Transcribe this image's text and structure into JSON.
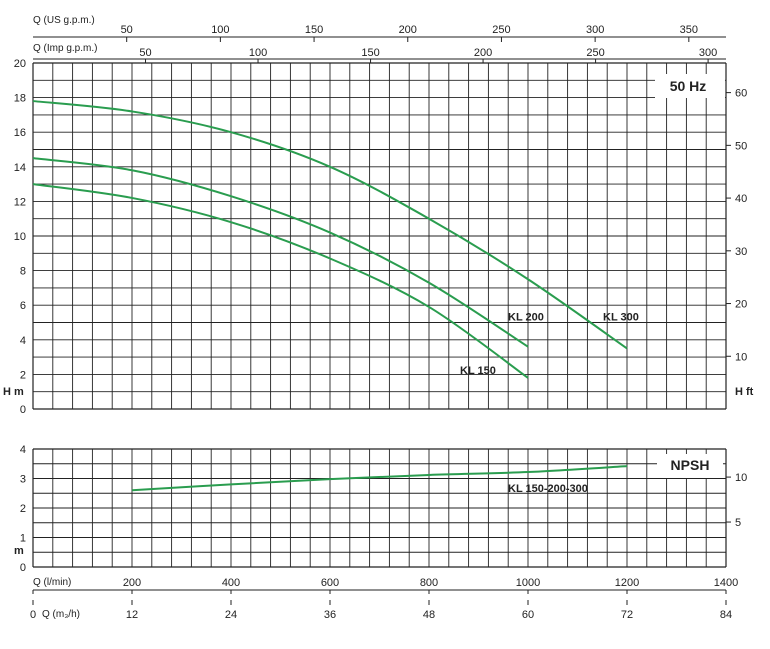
{
  "chart_data": [
    {
      "type": "line",
      "name": "head",
      "badge": "50 Hz",
      "ylabel_left": "H m",
      "ylabel_right": "H ft",
      "ylim": [
        0,
        20
      ],
      "y_ticks": [
        0,
        2,
        4,
        6,
        8,
        10,
        12,
        14,
        16,
        18,
        20
      ],
      "y_ft_ticks": [
        10,
        20,
        30,
        40,
        50,
        60
      ],
      "top_axis_us": {
        "label": "Q (US g.p.m.)",
        "ticks": [
          50,
          100,
          150,
          200,
          250,
          300,
          350
        ]
      },
      "top_axis_imp": {
        "label": "Q (Imp g.p.m.)",
        "ticks": [
          50,
          100,
          150,
          200,
          250,
          300
        ]
      },
      "x_unit": "l/min",
      "xlim": [
        0,
        1400
      ],
      "series": [
        {
          "name": "KL 300",
          "color": "#2a9d4f",
          "x": [
            0,
            200,
            400,
            600,
            800,
            1000,
            1200
          ],
          "y": [
            17.8,
            17.2,
            16.0,
            14.0,
            11.0,
            7.5,
            3.5
          ]
        },
        {
          "name": "KL 200",
          "color": "#2a9d4f",
          "x": [
            0,
            200,
            400,
            600,
            800,
            1000
          ],
          "y": [
            14.5,
            13.8,
            12.3,
            10.2,
            7.3,
            3.6
          ]
        },
        {
          "name": "KL 150",
          "color": "#2a9d4f",
          "x": [
            0,
            200,
            400,
            600,
            800,
            1000
          ],
          "y": [
            13.0,
            12.2,
            10.8,
            8.7,
            5.9,
            1.8
          ]
        }
      ]
    },
    {
      "type": "line",
      "name": "npsh",
      "badge": "NPSH",
      "ylabel_left": "m",
      "ylim": [
        0,
        4
      ],
      "y_ticks": [
        0,
        1,
        2,
        3,
        4
      ],
      "y_ft_ticks": [
        5,
        10
      ],
      "xlim": [
        0,
        1400
      ],
      "x_ticks_lmin": [
        0,
        200,
        400,
        600,
        800,
        1000,
        1200,
        1400
      ],
      "x_label_lmin": "Q (l/min)",
      "x_ticks_m3h": [
        0,
        12,
        24,
        36,
        48,
        60,
        72,
        84
      ],
      "x_label_m3h": "Q (m₃/h)",
      "series": [
        {
          "name": "KL 150-200-300",
          "color": "#2a9d4f",
          "x": [
            200,
            400,
            600,
            800,
            1000,
            1200
          ],
          "y": [
            2.6,
            2.8,
            2.98,
            3.12,
            3.22,
            3.42
          ]
        }
      ]
    }
  ]
}
